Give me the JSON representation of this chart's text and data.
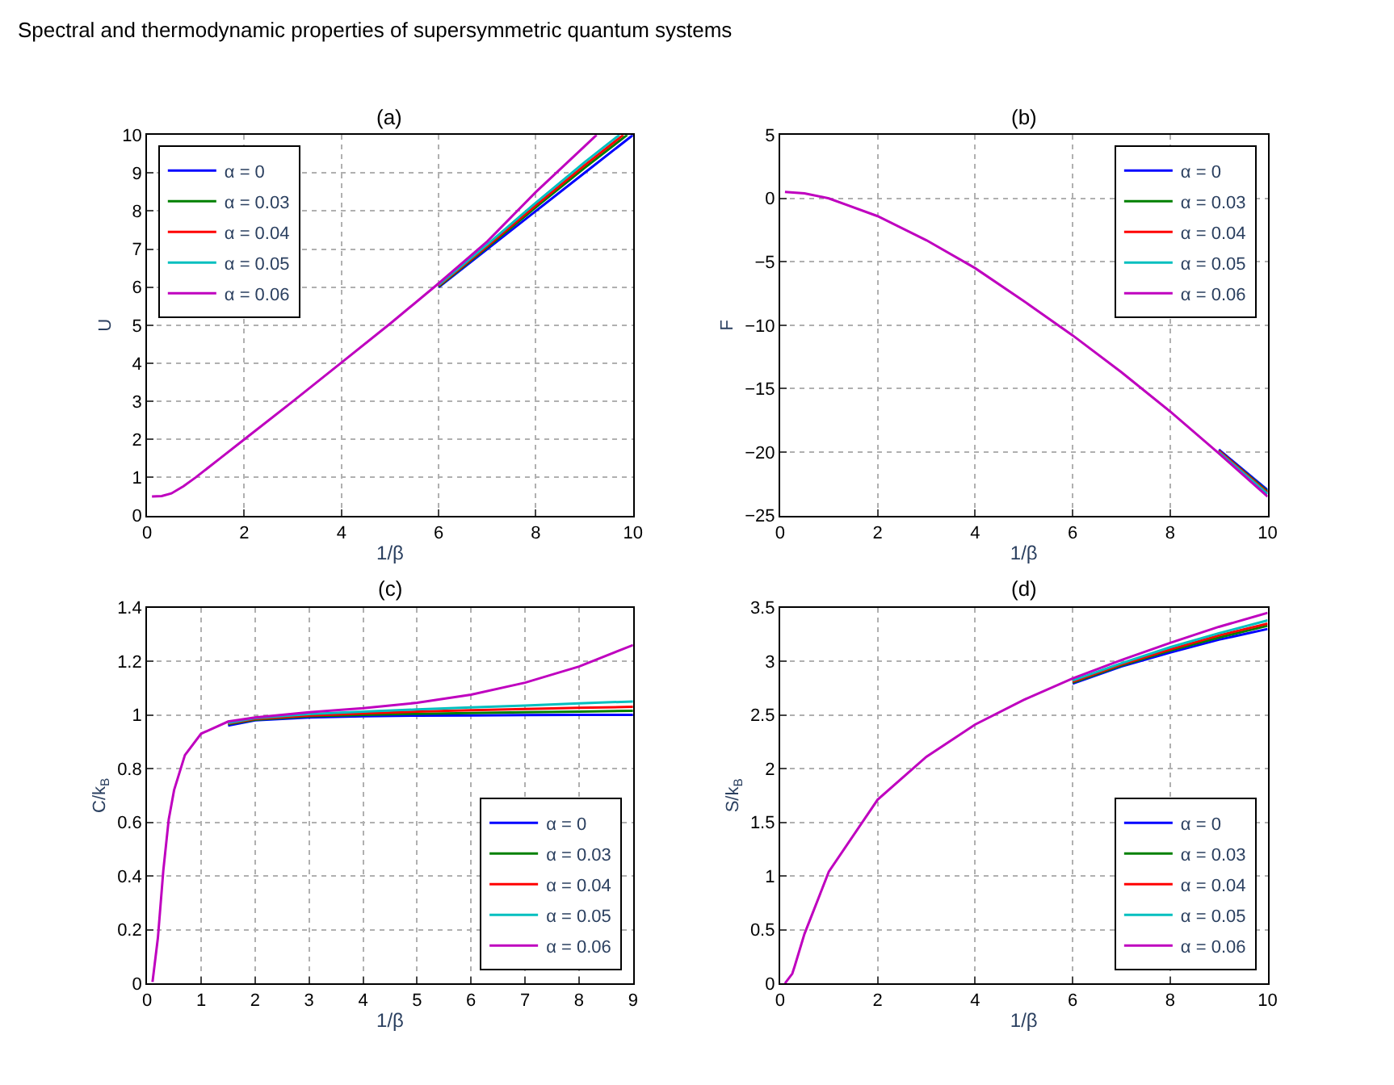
{
  "chart_data": [
    {
      "type": "line",
      "title": "(a)",
      "annotations": [
        "Spectral and thermodynamic properties of supersymmetric quantum systems"
      ],
      "xlabel": "1/β",
      "ylabel": "U",
      "xlim": [
        0,
        10
      ],
      "xticks": [
        0,
        2,
        4,
        6,
        8,
        10
      ],
      "ylim": [
        0,
        10
      ],
      "yticks": [
        0,
        1,
        2,
        3,
        4,
        5,
        6,
        7,
        8,
        9,
        10
      ],
      "grid": true,
      "legend": "top left",
      "line_style": "solid",
      "marker": "none",
      "series": [
        {
          "name": "α = 0",
          "color": "#0000ff",
          "x": [
            6,
            7,
            8,
            9,
            10
          ],
          "values": [
            6.0,
            7.0,
            8.0,
            9.0,
            10.0
          ]
        },
        {
          "name": "α = 0.03",
          "color": "#008000",
          "x": [
            6,
            7,
            8,
            9,
            9.88
          ],
          "values": [
            6.02,
            7.05,
            8.1,
            9.13,
            10.0
          ]
        },
        {
          "name": "α = 0.04",
          "color": "#ff0000",
          "x": [
            6,
            7,
            8,
            9,
            9.8
          ],
          "values": [
            6.04,
            7.08,
            8.15,
            9.2,
            10.0
          ]
        },
        {
          "name": "α = 0.05",
          "color": "#00bfbf",
          "x": [
            6,
            7,
            8,
            9,
            9.72
          ],
          "values": [
            6.06,
            7.12,
            8.22,
            9.28,
            10.0
          ]
        },
        {
          "name": "α = 0.06",
          "color": "#bf00bf",
          "x": [
            0.1,
            0.3,
            0.5,
            0.75,
            1,
            1.5,
            2,
            3,
            4,
            5,
            6,
            7,
            8,
            9,
            9.25
          ],
          "values": [
            0.5,
            0.51,
            0.58,
            0.77,
            1.0,
            1.5,
            2.0,
            3.0,
            4.02,
            5.04,
            6.1,
            7.2,
            8.5,
            9.7,
            10.0
          ]
        }
      ]
    },
    {
      "type": "line",
      "title": "(b)",
      "xlabel": "1/β",
      "ylabel": "F",
      "xlim": [
        0,
        10
      ],
      "xticks": [
        0,
        2,
        4,
        6,
        8,
        10
      ],
      "ylim": [
        -25,
        5
      ],
      "yticks": [
        {
          "value": -25,
          "label": "−25"
        },
        {
          "value": -20,
          "label": "−20"
        },
        {
          "value": -15,
          "label": "−15"
        },
        {
          "value": -10,
          "label": "−10"
        },
        {
          "value": -5,
          "label": "−5"
        },
        0,
        5
      ],
      "grid": true,
      "legend": "top right",
      "line_style": "solid",
      "marker": "none",
      "series": [
        {
          "name": "α = 0",
          "color": "#0000ff",
          "x": [
            9,
            10
          ],
          "values": [
            -19.8,
            -23.0
          ]
        },
        {
          "name": "α = 0.03",
          "color": "#008000",
          "x": [
            9,
            10
          ],
          "values": [
            -19.9,
            -23.1
          ]
        },
        {
          "name": "α = 0.04",
          "color": "#ff0000",
          "x": [
            9,
            10
          ],
          "values": [
            -19.9,
            -23.2
          ]
        },
        {
          "name": "α = 0.05",
          "color": "#00bfbf",
          "x": [
            9,
            10
          ],
          "values": [
            -20.0,
            -23.3
          ]
        },
        {
          "name": "α = 0.06",
          "color": "#bf00bf",
          "x": [
            0.1,
            0.5,
            1,
            2,
            3,
            4,
            5,
            6,
            7,
            8,
            9,
            10
          ],
          "values": [
            0.5,
            0.4,
            0.0,
            -1.4,
            -3.3,
            -5.5,
            -8.1,
            -10.8,
            -13.7,
            -16.8,
            -20.1,
            -23.5
          ]
        }
      ]
    },
    {
      "type": "line",
      "title": "(c)",
      "xlabel": "1/β",
      "ylabel": "C/k$_{B}$",
      "xlim": [
        0,
        9
      ],
      "xticks": [
        0,
        1,
        2,
        3,
        4,
        5,
        6,
        7,
        8,
        9
      ],
      "ylim": [
        0,
        1.4
      ],
      "yticks": [
        0,
        0.2,
        0.4,
        0.6,
        0.8,
        1,
        1.2,
        1.4
      ],
      "grid": true,
      "legend": "bottom right",
      "line_style": "solid",
      "marker": "none",
      "series": [
        {
          "name": "α = 0",
          "color": "#0000ff",
          "x": [
            1.5,
            2,
            3,
            4,
            5,
            6,
            7,
            8,
            9
          ],
          "values": [
            0.96,
            0.98,
            0.99,
            0.995,
            0.997,
            0.998,
            0.999,
            1.0,
            1.0
          ]
        },
        {
          "name": "α = 0.03",
          "color": "#008000",
          "x": [
            1.5,
            2,
            3,
            4,
            5,
            6,
            7,
            8,
            9
          ],
          "values": [
            0.965,
            0.982,
            0.995,
            1.0,
            1.004,
            1.007,
            1.01,
            1.012,
            1.015
          ]
        },
        {
          "name": "α = 0.04",
          "color": "#ff0000",
          "x": [
            1.5,
            2,
            3,
            4,
            5,
            6,
            7,
            8,
            9
          ],
          "values": [
            0.968,
            0.985,
            0.998,
            1.005,
            1.012,
            1.017,
            1.022,
            1.026,
            1.03
          ]
        },
        {
          "name": "α = 0.05",
          "color": "#00bfbf",
          "x": [
            1.5,
            2,
            3,
            4,
            5,
            6,
            7,
            8,
            9
          ],
          "values": [
            0.97,
            0.988,
            1.003,
            1.012,
            1.02,
            1.028,
            1.035,
            1.043,
            1.05
          ]
        },
        {
          "name": "α = 0.06",
          "color": "#bf00bf",
          "x": [
            0.1,
            0.2,
            0.3,
            0.4,
            0.5,
            0.7,
            1,
            1.5,
            2,
            3,
            4,
            5,
            6,
            7,
            8,
            9
          ],
          "values": [
            0.005,
            0.17,
            0.42,
            0.61,
            0.72,
            0.85,
            0.93,
            0.975,
            0.99,
            1.01,
            1.025,
            1.045,
            1.075,
            1.12,
            1.18,
            1.26
          ]
        }
      ]
    },
    {
      "type": "line",
      "title": "(d)",
      "xlabel": "1/β",
      "ylabel": "S/k$_{B}$",
      "xlim": [
        0,
        10
      ],
      "xticks": [
        0,
        2,
        4,
        6,
        8,
        10
      ],
      "ylim": [
        0,
        3.5
      ],
      "yticks": [
        0,
        0.5,
        1,
        1.5,
        2,
        2.5,
        3,
        3.5
      ],
      "grid": true,
      "legend": "bottom right",
      "line_style": "solid",
      "marker": "none",
      "series": [
        {
          "name": "α = 0",
          "color": "#0000ff",
          "x": [
            6,
            7,
            8,
            9,
            10
          ],
          "values": [
            2.79,
            2.95,
            3.08,
            3.2,
            3.3
          ]
        },
        {
          "name": "α = 0.03",
          "color": "#008000",
          "x": [
            6,
            7,
            8,
            9,
            10
          ],
          "values": [
            2.8,
            2.96,
            3.1,
            3.22,
            3.33
          ]
        },
        {
          "name": "α = 0.04",
          "color": "#ff0000",
          "x": [
            6,
            7,
            8,
            9,
            10
          ],
          "values": [
            2.81,
            2.97,
            3.11,
            3.24,
            3.35
          ]
        },
        {
          "name": "α = 0.05",
          "color": "#00bfbf",
          "x": [
            6,
            7,
            8,
            9,
            10
          ],
          "values": [
            2.82,
            2.98,
            3.13,
            3.26,
            3.38
          ]
        },
        {
          "name": "α = 0.06",
          "color": "#bf00bf",
          "x": [
            0.1,
            0.25,
            0.3,
            0.5,
            1,
            2,
            3,
            4,
            5,
            6,
            7,
            8,
            9,
            10
          ],
          "values": [
            0.0,
            0.09,
            0.16,
            0.46,
            1.04,
            1.71,
            2.11,
            2.41,
            2.64,
            2.84,
            3.01,
            3.17,
            3.32,
            3.45
          ]
        }
      ]
    }
  ]
}
